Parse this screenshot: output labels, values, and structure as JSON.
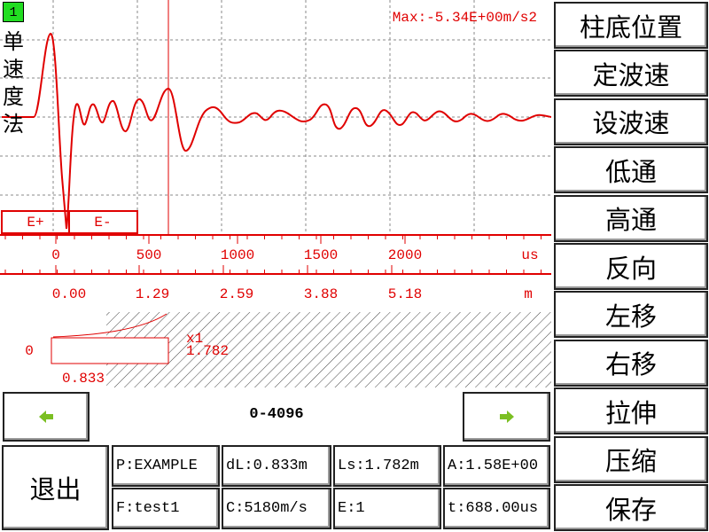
{
  "screen_index": "1",
  "method_label": "单速度法",
  "max_label": "Max:-5.34E+00m/s2",
  "markers": [
    "E+",
    "E-"
  ],
  "time_axis": {
    "ticks": [
      "0",
      "500",
      "1000",
      "1500",
      "2000"
    ],
    "unit": "us"
  },
  "depth_axis": {
    "ticks": [
      "0.00",
      "1.29",
      "2.59",
      "3.88",
      "5.18"
    ],
    "unit": "m"
  },
  "preview": {
    "zero": "0",
    "scale": "x1",
    "length": "1.782",
    "offset": "0.833"
  },
  "range": "0-4096",
  "exit_button": "退出",
  "info": [
    [
      "P:EXAMPLE",
      "dL:0.833m",
      "Ls:1.782m",
      "A:1.58E+00"
    ],
    [
      "F:test1",
      "C:5180m/s",
      "E:1",
      "t:688.00us"
    ]
  ],
  "menu": [
    "柱底位置",
    "定波速",
    "设波速",
    "低通",
    "高通",
    "反向",
    "左移",
    "右移",
    "拉伸",
    "压缩",
    "保存"
  ]
}
